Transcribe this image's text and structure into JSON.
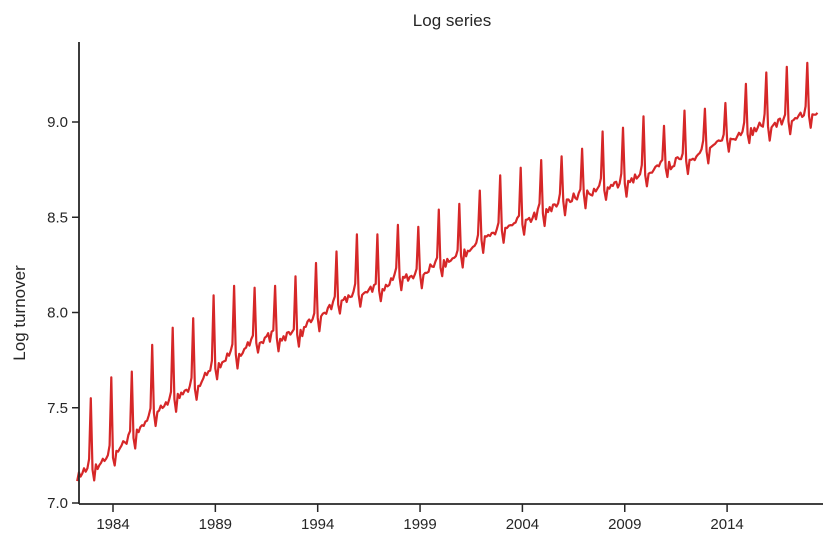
{
  "chart_data": {
    "type": "line",
    "title": "Log series",
    "xlabel": "",
    "ylabel": "Log turnover",
    "xlim": [
      1982.35,
      2018.7
    ],
    "ylim": [
      7.0,
      9.42
    ],
    "grid": false,
    "legend": null,
    "line_color": "#d62728",
    "x_ticks": [
      1984,
      1989,
      1994,
      1999,
      2004,
      2009,
      2014
    ],
    "x_tick_labels": [
      "1984",
      "1989",
      "1994",
      "1999",
      "2004",
      "2009",
      "2014"
    ],
    "y_ticks": [
      7.0,
      7.5,
      8.0,
      8.5,
      9.0
    ],
    "y_tick_labels": [
      "7.0",
      "7.5",
      "8.0",
      "8.5",
      "9.0"
    ],
    "frequency": "monthly",
    "start": "1982-04",
    "end": "2018-06",
    "annual_summary": {
      "years": [
        1982,
        1983,
        1984,
        1985,
        1986,
        1987,
        1988,
        1989,
        1990,
        1991,
        1992,
        1993,
        1994,
        1995,
        1996,
        1997,
        1998,
        1999,
        2000,
        2001,
        2002,
        2003,
        2004,
        2005,
        2006,
        2007,
        2008,
        2009,
        2010,
        2011,
        2012,
        2013,
        2014,
        2015,
        2016,
        2017,
        2018
      ],
      "baseline": [
        7.13,
        7.18,
        7.25,
        7.35,
        7.47,
        7.55,
        7.6,
        7.72,
        7.78,
        7.85,
        7.87,
        7.88,
        7.97,
        8.05,
        8.1,
        8.12,
        8.18,
        8.2,
        8.25,
        8.3,
        8.38,
        8.43,
        8.47,
        8.52,
        8.58,
        8.62,
        8.65,
        8.68,
        8.72,
        8.77,
        8.8,
        8.85,
        8.91,
        8.95,
        8.98,
        9.0,
        9.03
      ],
      "december_peak": [
        7.55,
        7.66,
        7.69,
        7.83,
        7.92,
        7.97,
        8.09,
        8.14,
        8.13,
        8.14,
        8.19,
        8.26,
        8.32,
        8.41,
        8.41,
        8.46,
        8.45,
        8.54,
        8.57,
        8.64,
        8.72,
        8.76,
        8.8,
        8.82,
        8.86,
        8.95,
        8.97,
        9.03,
        8.98,
        9.06,
        9.07,
        9.1,
        9.2,
        9.26,
        9.29,
        9.31,
        null
      ]
    }
  }
}
